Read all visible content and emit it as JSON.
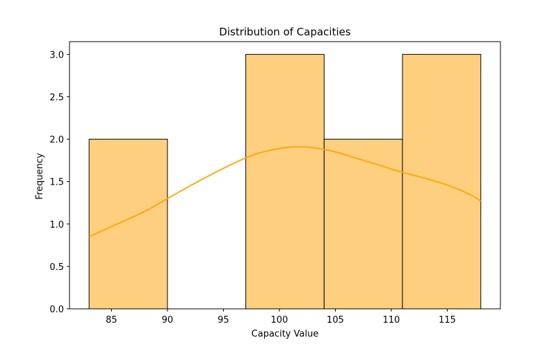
{
  "chart_data": {
    "type": "bar",
    "title": "Distribution of Capacities",
    "xlabel": "Capacity Value",
    "ylabel": "Frequency",
    "xlim": [
      81.25,
      119.75
    ],
    "ylim": [
      0,
      3.15
    ],
    "x_ticks": [
      85,
      90,
      95,
      100,
      105,
      110,
      115
    ],
    "y_ticks": [
      0.0,
      0.5,
      1.0,
      1.5,
      2.0,
      2.5,
      3.0
    ],
    "y_tick_labels": [
      "0.0",
      "0.5",
      "1.0",
      "1.5",
      "2.0",
      "2.5",
      "3.0"
    ],
    "bins": [
      {
        "start": 83,
        "end": 90,
        "count": 2
      },
      {
        "start": 90,
        "end": 97,
        "count": 0
      },
      {
        "start": 97,
        "end": 104,
        "count": 3
      },
      {
        "start": 104,
        "end": 111,
        "count": 2
      },
      {
        "start": 111,
        "end": 118,
        "count": 3
      }
    ],
    "kde": {
      "x": [
        83,
        85,
        88,
        90,
        93,
        96,
        98,
        100,
        101.5,
        103,
        105,
        107,
        109,
        111,
        113,
        115,
        117,
        118
      ],
      "y": [
        0.85,
        0.97,
        1.15,
        1.3,
        1.52,
        1.72,
        1.83,
        1.89,
        1.91,
        1.9,
        1.85,
        1.77,
        1.69,
        1.61,
        1.54,
        1.46,
        1.35,
        1.27
      ]
    },
    "grid": false,
    "legend": "none",
    "colors": {
      "bar_fill": "#fecf7f",
      "bar_edge": "#000000",
      "kde_line": "#ffa500"
    }
  }
}
